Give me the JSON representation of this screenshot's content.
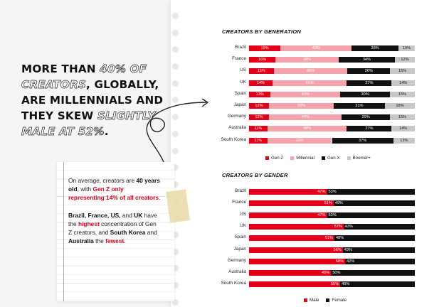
{
  "headline": {
    "part1": "MORE THAN ",
    "part2": "40% OF CREATORS",
    "part3": ", GLOBALLY, ARE MILLENNIALS AND THEY SKEW ",
    "part4": "SLIGHTLY MALE AT 52%",
    "part5": "."
  },
  "note": {
    "p1_a": "On average, creators are ",
    "p1_b": "40 years old",
    "p1_c": ", with ",
    "p1_d": "Gen Z only representing 14% of all creators",
    "p1_e": ".",
    "p2_a": "Brazil, France, US,",
    "p2_b": " and ",
    "p2_c": "UK",
    "p2_d": " have the ",
    "p2_e": "highest",
    "p2_f": " concentration of Gen Z creators, and ",
    "p2_g": "South Korea",
    "p2_h": " and ",
    "p2_i": "Australia",
    "p2_j": " the ",
    "p2_k": "fewest",
    "p2_l": "."
  },
  "colors": {
    "genz": "#e2001a",
    "millennial": "#f4a3ab",
    "genx": "#111111",
    "boomer": "#c8c8c8",
    "male": "#e2001a",
    "female": "#111111"
  },
  "chart_data": [
    {
      "type": "bar",
      "title": "CREATORS BY GENERATION",
      "categories": [
        "Brazil",
        "France",
        "US",
        "UK",
        "Spain",
        "Japan",
        "Germany",
        "Australia",
        "South Korea"
      ],
      "series": [
        {
          "name": "Gen Z",
          "values": [
            19,
            16,
            15,
            14,
            13,
            12,
            12,
            11,
            11
          ]
        },
        {
          "name": "Millennial",
          "values": [
            43,
            38,
            45,
            45,
            42,
            39,
            44,
            48,
            39
          ]
        },
        {
          "name": "Gen X",
          "values": [
            28,
            34,
            26,
            27,
            30,
            31,
            29,
            27,
            37
          ]
        },
        {
          "name": "Boomer+",
          "values": [
            10,
            12,
            15,
            14,
            15,
            18,
            15,
            14,
            13
          ]
        }
      ],
      "stacked": true,
      "legend": "bottom"
    },
    {
      "type": "bar",
      "title": "CREATORS BY GENDER",
      "categories": [
        "Brazil",
        "France",
        "US",
        "UK",
        "Spain",
        "Japan",
        "Germany",
        "Australia",
        "South Korea"
      ],
      "series": [
        {
          "name": "Male",
          "values": [
            47,
            51,
            47,
            57,
            51,
            56,
            58,
            49,
            55
          ]
        },
        {
          "name": "Female",
          "values": [
            53,
            49,
            53,
            43,
            48,
            43,
            42,
            50,
            45
          ]
        }
      ],
      "stacked": true,
      "legend": "bottom"
    }
  ]
}
